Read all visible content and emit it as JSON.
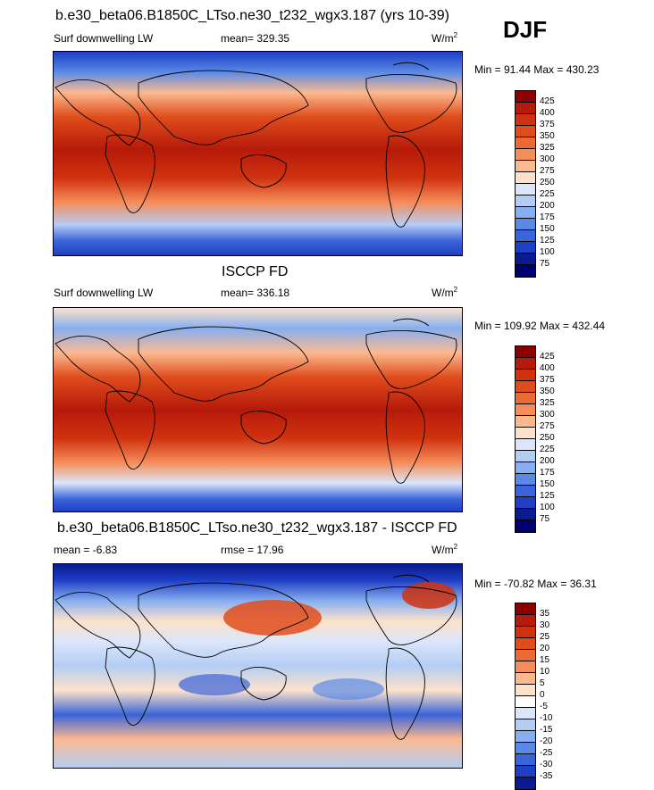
{
  "season": "DJF",
  "panels": [
    {
      "title": "b.e30_beta06.B1850C_LTso.ne30_t232_wgx3.187 (yrs 10-39)",
      "left": "Surf downwelling LW",
      "center": "mean= 329.35",
      "units": "W/m",
      "units_sup": "2",
      "minmax": "Min =  91.44 Max = 430.23",
      "colorbar_labels": [
        "425",
        "400",
        "375",
        "350",
        "325",
        "300",
        "275",
        "250",
        "225",
        "200",
        "175",
        "150",
        "125",
        "100",
        "75"
      ]
    },
    {
      "title": "ISCCP FD",
      "left": "Surf downwelling LW",
      "center": "mean= 336.18",
      "units": "W/m",
      "units_sup": "2",
      "minmax": "Min = 109.92 Max = 432.44",
      "colorbar_labels": [
        "425",
        "400",
        "375",
        "350",
        "325",
        "300",
        "275",
        "250",
        "225",
        "200",
        "175",
        "150",
        "125",
        "100",
        "75"
      ]
    },
    {
      "title": "b.e30_beta06.B1850C_LTso.ne30_t232_wgx3.187 - ISCCP FD",
      "left": "mean =  -6.83",
      "center": "rmse =  17.96",
      "units": "W/m",
      "units_sup": "2",
      "minmax": "Min = -70.82 Max =  36.31",
      "colorbar_labels": [
        "35",
        "30",
        "25",
        "20",
        "15",
        "10",
        "5",
        "0",
        "-5",
        "-10",
        "-15",
        "-20",
        "-25",
        "-30",
        "-35"
      ]
    }
  ],
  "colors": {
    "abs_scale": [
      "#8b0000",
      "#b51a0a",
      "#d0320f",
      "#e04d1c",
      "#ec6a34",
      "#f58d5a",
      "#fbb990",
      "#fde2cb",
      "#dbe6fa",
      "#b4cdf5",
      "#86aef0",
      "#5a8ae6",
      "#3a64d9",
      "#1f3fc4",
      "#0a1a90",
      "#000070"
    ],
    "diff_scale": [
      "#8b0000",
      "#b51a0a",
      "#d0320f",
      "#e04d1c",
      "#ec6a34",
      "#f58d5a",
      "#fbb990",
      "#fde2cb",
      "#ffffff",
      "#dbe6fa",
      "#b4cdf5",
      "#86aef0",
      "#5a8ae6",
      "#3a64d9",
      "#1f3fc4",
      "#0a1a90"
    ]
  },
  "map_icons": [
    "world-map-coastlines"
  ]
}
